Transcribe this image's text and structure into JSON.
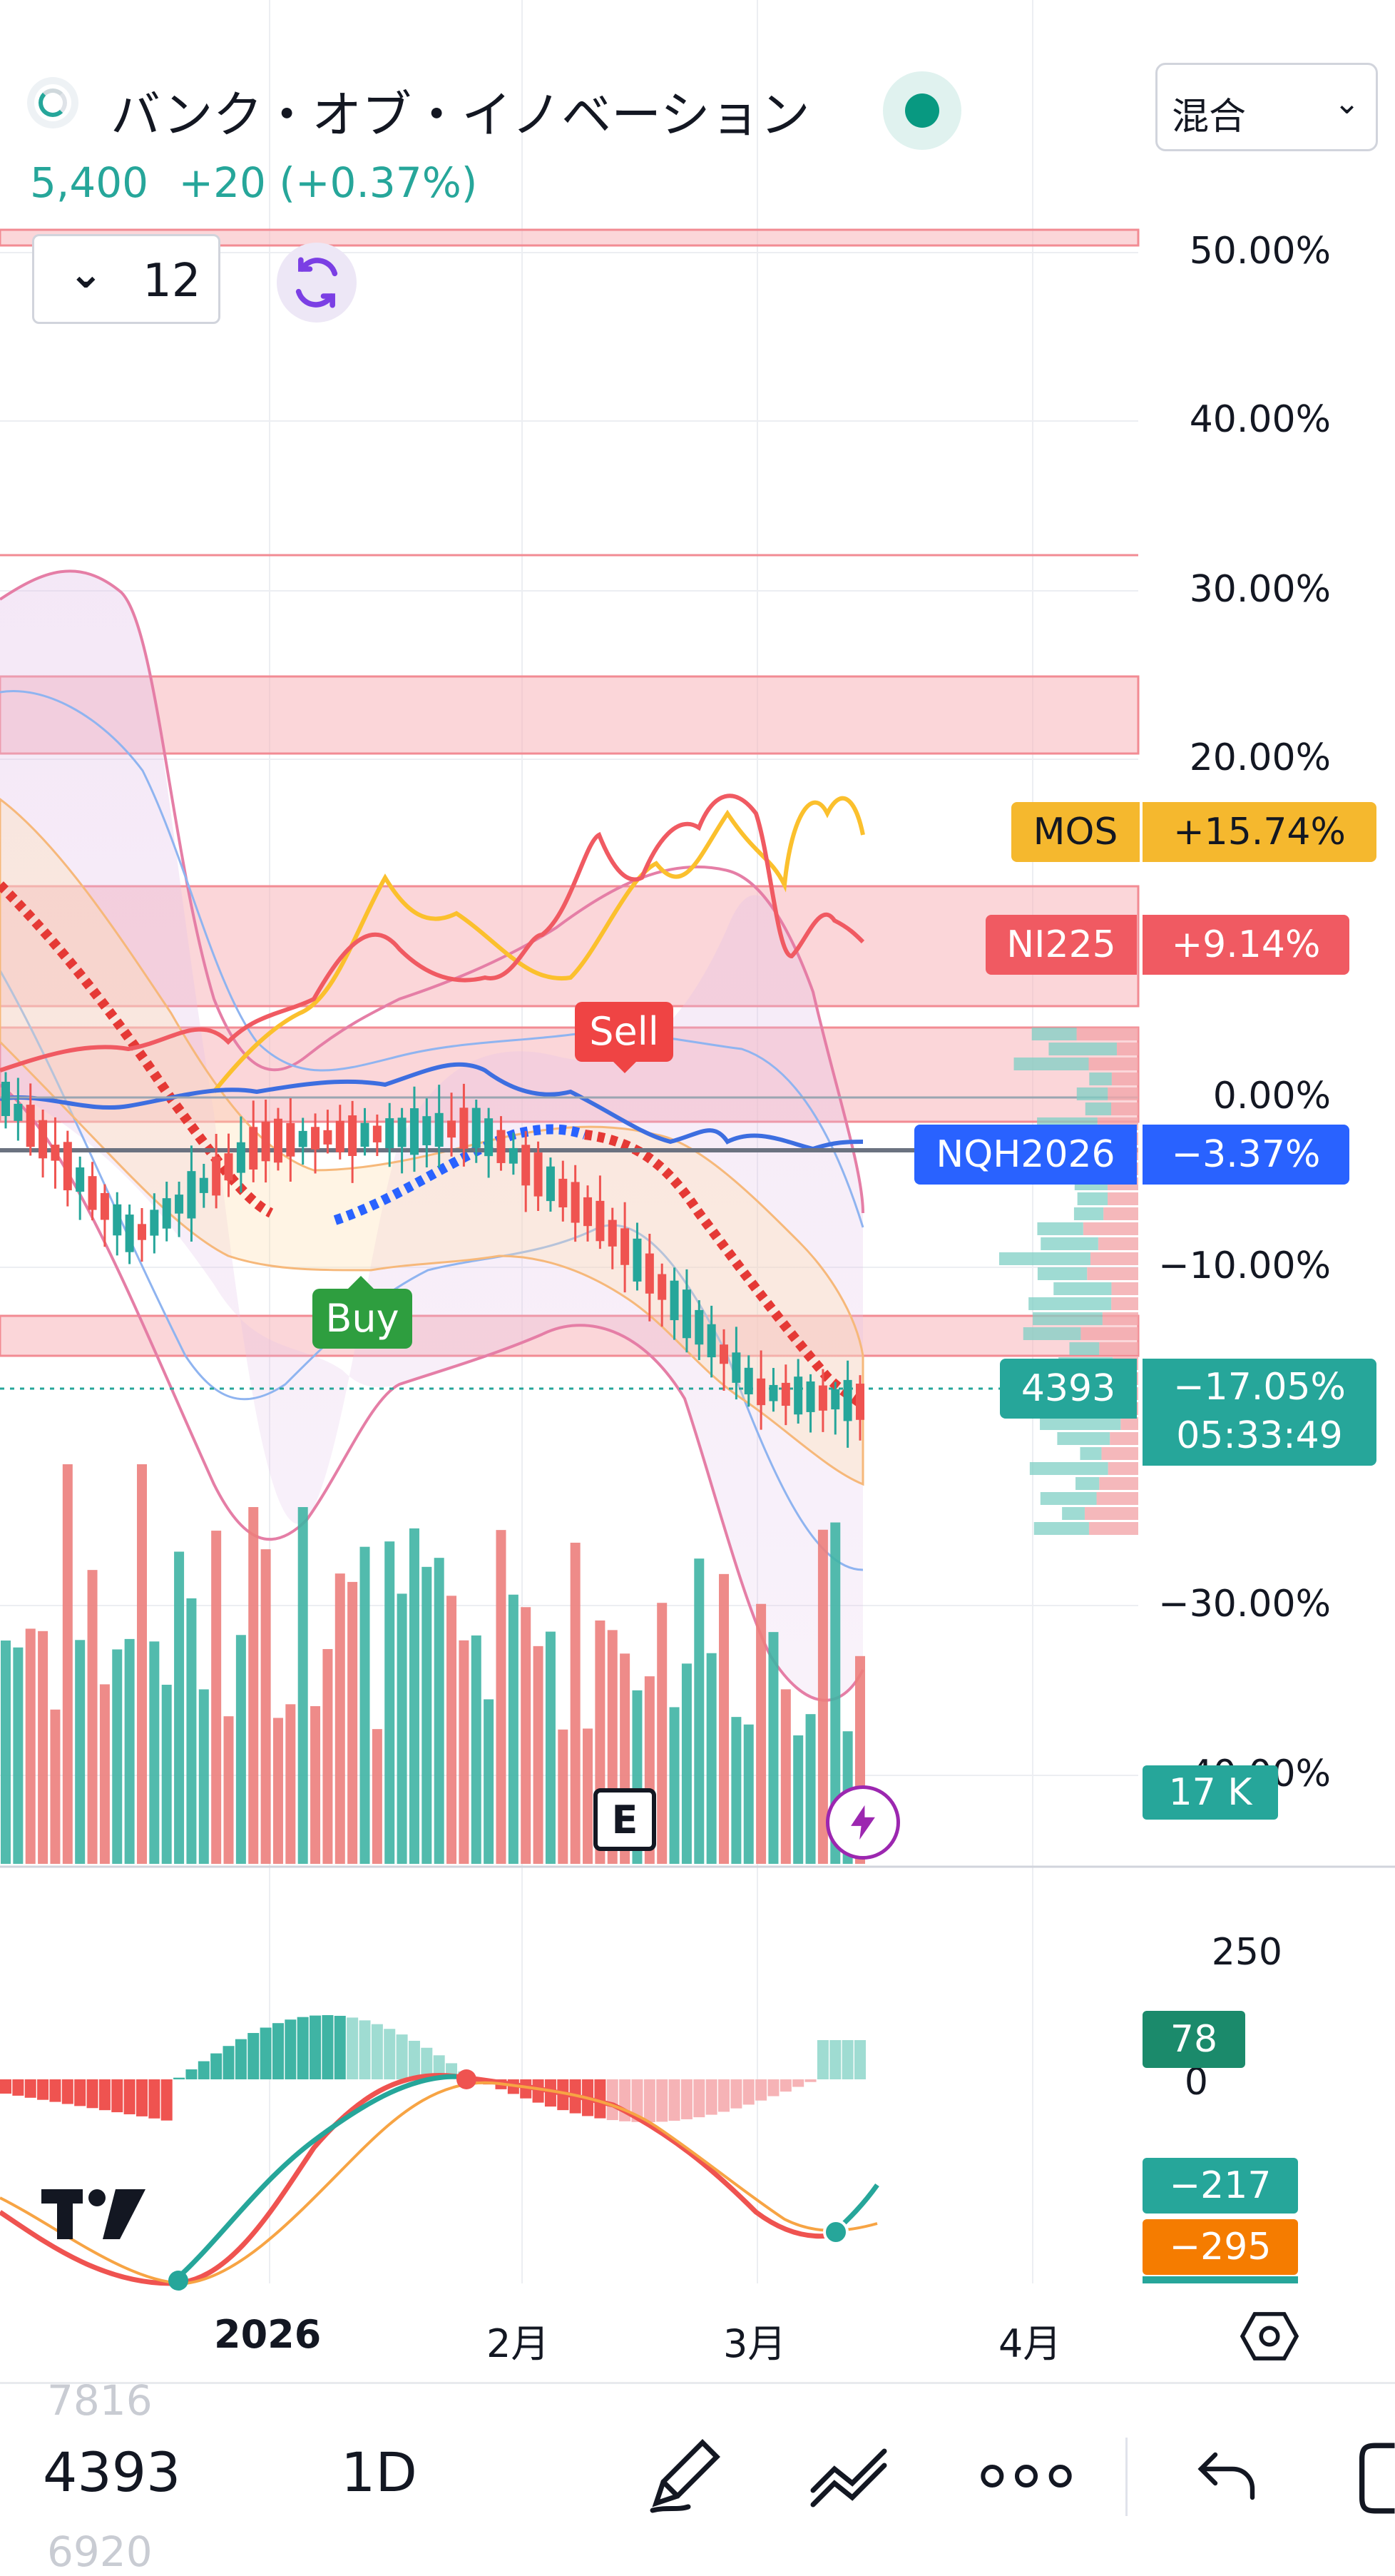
{
  "header": {
    "symbol_name": "バンク・オブ・イノベーション",
    "price": "5,400",
    "change": "+20 (+0.37%)",
    "mode_label": "混合",
    "indicator_count": "12"
  },
  "price_axis": [
    "50.00%",
    "40.00%",
    "30.00%",
    "20.00%",
    "0.00%",
    "−10.00%",
    "−30.00%",
    "−40.00%"
  ],
  "series_labels": [
    {
      "name": "MOS",
      "value": "+15.74%",
      "color": "#f5b82e"
    },
    {
      "name": "NI225",
      "value": "+9.14%",
      "color": "#f05a62"
    },
    {
      "name": "NQH2026",
      "value": "−3.37%",
      "color": "#2962ff"
    },
    {
      "name": "4393",
      "value": "−17.05%",
      "countdown": "05:33:49",
      "color": "#26a69a"
    }
  ],
  "volume_label": "17 K",
  "signals": {
    "sell": "Sell",
    "buy": "Buy"
  },
  "earnings_marker": "E",
  "oscillator": {
    "axis": [
      "250",
      "0"
    ],
    "values": [
      {
        "value": "78",
        "color": "#26a69a"
      },
      {
        "value": "−217",
        "color": "#26a69a"
      },
      {
        "value": "−295",
        "color": "#f57c00"
      }
    ]
  },
  "time_axis": [
    "2026",
    "2月",
    "3月",
    "4月"
  ],
  "bottom_bar": {
    "symbol": "4393",
    "interval": "1D",
    "ghost_top": "7816",
    "ghost_bottom": "6920"
  },
  "icons": [
    "pencil-icon",
    "trend-lines-icon",
    "more-icon",
    "undo-icon",
    "settings-hex-icon",
    "refresh-icon",
    "bolt-icon",
    "chevron-down-icon"
  ],
  "colors": {
    "up": "#26a69a",
    "down": "#ef5350",
    "nasdaq": "#2962ff",
    "mos": "#f5b82e",
    "nikkei": "#f05a62",
    "bb": "#e57ea6"
  }
}
